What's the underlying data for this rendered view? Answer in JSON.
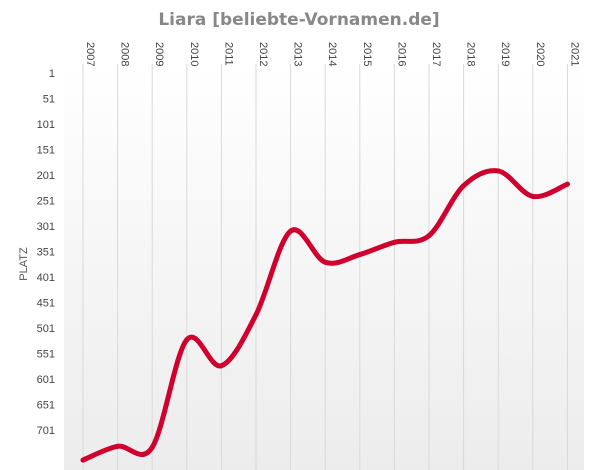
{
  "chart_data": {
    "type": "line",
    "title": "Liara [beliebte-Vornamen.de]",
    "xlabel": "",
    "ylabel": "PLATZ",
    "x": [
      "2007",
      "2008",
      "2009",
      "2010",
      "2011",
      "2012",
      "2013",
      "2014",
      "2015",
      "2016",
      "2017",
      "2018",
      "2019",
      "2020",
      "2021"
    ],
    "series": [
      {
        "values": [
          760,
          733,
          735,
          524,
          575,
          475,
          311,
          372,
          357,
          333,
          320,
          222,
          193,
          243,
          219
        ]
      }
    ],
    "y_ticks": [
      "1",
      "51",
      "101",
      "151",
      "201",
      "251",
      "301",
      "351",
      "401",
      "451",
      "501",
      "551",
      "601",
      "651",
      "701"
    ],
    "ylim": [
      1,
      760
    ],
    "y_reversed": true,
    "grid": "vertical",
    "line_color": "#d0002e",
    "background_gradient": [
      "#ffffff",
      "#ececec"
    ]
  }
}
